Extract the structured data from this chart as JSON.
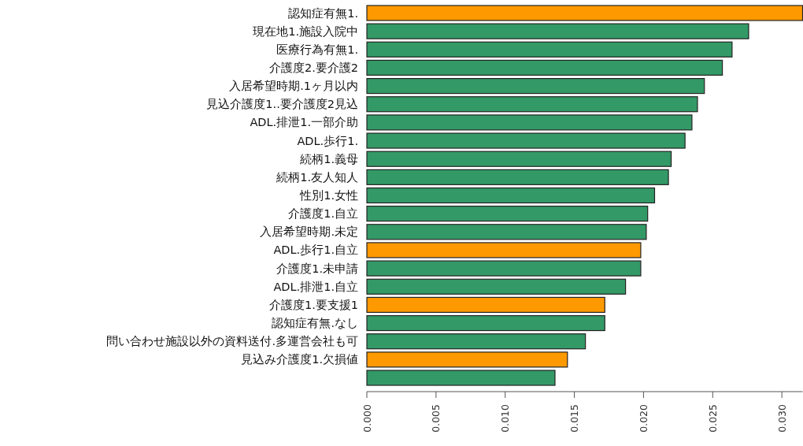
{
  "chart_data": {
    "type": "bar",
    "orientation": "horizontal",
    "categories": [
      "認知症有無1.",
      "現在地1.施設入院中",
      "医療行為有無1.",
      "介護度2.要介護2",
      "入居希望時期.1ヶ月以内",
      "見込介護度1..要介護度2見込",
      "ADL.排泄1.一部介助",
      "ADL.歩行1.",
      "続柄1.義母",
      "続柄1.友人知人",
      "性別1.女性",
      "介護度1.自立",
      "入居希望時期.未定",
      "ADL.歩行1.自立",
      "介護度1.未申請",
      "ADL.排泄1.自立",
      "介護度1.要支援1",
      "認知症有無.なし",
      "問い合わせ施設以外の資料送付.多運営会社も可",
      "見込み介護度1.欠損値",
      null
    ],
    "values": [
      0.0315,
      0.0276,
      0.0264,
      0.0257,
      0.0244,
      0.0239,
      0.0235,
      0.023,
      0.022,
      0.0218,
      0.0208,
      0.0203,
      0.0202,
      0.0198,
      0.0198,
      0.0187,
      0.0172,
      0.0172,
      0.0158,
      0.0145,
      0.0136
    ],
    "colors": [
      "#ff9900",
      "#339966",
      "#339966",
      "#339966",
      "#339966",
      "#339966",
      "#339966",
      "#339966",
      "#339966",
      "#339966",
      "#339966",
      "#339966",
      "#339966",
      "#ff9900",
      "#339966",
      "#339966",
      "#ff9900",
      "#339966",
      "#339966",
      "#ff9900",
      "#339966"
    ],
    "xlim": [
      0,
      0.0315
    ],
    "xticks": [
      {
        "value": 0,
        "label": "0.000"
      },
      {
        "value": 0.005,
        "label": "0.005"
      },
      {
        "value": 0.01,
        "label": "0.010"
      },
      {
        "value": 0.015,
        "label": "0.015"
      },
      {
        "value": 0.02,
        "label": "0.020"
      },
      {
        "value": 0.025,
        "label": "0.025"
      },
      {
        "value": 0.03,
        "label": "0.030"
      }
    ],
    "grid": false
  }
}
